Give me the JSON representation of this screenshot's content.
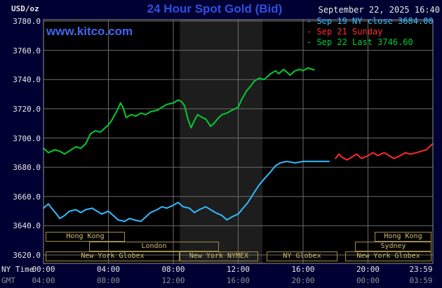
{
  "header": {
    "unit": "USD/oz",
    "title": "24 Hour Spot Gold (Bid)",
    "datetime": "September 22, 2025 16:40",
    "watermark": "www.kitco.com"
  },
  "legend": {
    "items": [
      {
        "id": "sep19",
        "marker": "-",
        "label": "Sep 19 NY close 3684.00",
        "color": "#33bbff"
      },
      {
        "id": "sep21",
        "marker": "-",
        "label": "Sep 21 Sunday",
        "color": "#ff2a2a"
      },
      {
        "id": "sep22",
        "marker": "-",
        "label": "Sep 22 Last 3746.60",
        "color": "#00cc33"
      }
    ]
  },
  "axes": {
    "x_ny_label": "NY Time",
    "x_gmt_label": "GMT"
  },
  "colors": {
    "background": "#000033",
    "plot_background": "#000000",
    "band": "#1d1d1d",
    "grid": "#6b6b6b",
    "border": "#909090",
    "title_blue": "#2f4fe0",
    "link_blue": "#3f66f2",
    "text_white": "#e8e8e8",
    "text_gray": "#909090",
    "session_border": "#a18c4a",
    "session_text": "#d4be72"
  },
  "sessions": [
    {
      "label": "Hong Kong",
      "row": 0,
      "start_hour": 0.12,
      "end_hour": 5.0
    },
    {
      "label": "Hong Kong",
      "row": 0,
      "start_hour": 20.4,
      "end_hour": 23.9
    },
    {
      "label": "London",
      "row": 1,
      "start_hour": 2.8,
      "end_hour": 10.8
    },
    {
      "label": "Sydney",
      "row": 1,
      "start_hour": 19.2,
      "end_hour": 23.9
    },
    {
      "label": "New York Globex",
      "row": 2,
      "start_hour": 0.12,
      "end_hour": 8.4
    },
    {
      "label": "New York NYMEX",
      "row": 2,
      "start_hour": 8.4,
      "end_hour": 13.25
    },
    {
      "label": "NY Globex",
      "row": 2,
      "start_hour": 13.75,
      "end_hour": 18.1
    },
    {
      "label": "New York Globex",
      "row": 2,
      "start_hour": 18.6,
      "end_hour": 23.9
    }
  ],
  "chart_data": {
    "type": "line",
    "title": "24 Hour Spot Gold (Bid)",
    "x_unit": "hour of day, NY time",
    "y_unit": "USD/oz",
    "ylim": [
      3620,
      3780
    ],
    "xlim_hours": [
      0,
      24
    ],
    "grid": true,
    "legend_position": "top-right",
    "yticks": [
      {
        "value": 3780,
        "label": "3780.0"
      },
      {
        "value": 3760,
        "label": "3760.0"
      },
      {
        "value": 3740,
        "label": "3740.0"
      },
      {
        "value": 3720,
        "label": "3720.0"
      },
      {
        "value": 3700,
        "label": "3700.0"
      },
      {
        "value": 3680,
        "label": "3680.0"
      },
      {
        "value": 3660,
        "label": "3660.0"
      },
      {
        "value": 3640,
        "label": "3640.0"
      },
      {
        "value": 3620,
        "label": "3620.0"
      }
    ],
    "xticks": [
      {
        "hour": 0,
        "ny": "00:00",
        "gmt": "04:00"
      },
      {
        "hour": 4,
        "ny": "04:00",
        "gmt": "08:00"
      },
      {
        "hour": 8,
        "ny": "08:00",
        "gmt": "12:00"
      },
      {
        "hour": 12,
        "ny": "12:00",
        "gmt": "16:00"
      },
      {
        "hour": 16,
        "ny": "16:00",
        "gmt": "20:00"
      },
      {
        "hour": 20,
        "ny": "20:00",
        "gmt": "00:00"
      },
      {
        "hour": 23.983,
        "ny": "23:59",
        "gmt": "03:59"
      }
    ],
    "band": {
      "name": "NYMEX floor session shading",
      "start_hour": 8.4,
      "end_hour": 13.5
    },
    "series": [
      {
        "id": "sep19",
        "name": "Sep 19 NY close",
        "close_value": 3684.0,
        "color": "#33bbff",
        "points": [
          [
            0,
            3652
          ],
          [
            0.3,
            3655
          ],
          [
            0.5,
            3652
          ],
          [
            0.8,
            3648
          ],
          [
            1,
            3645
          ],
          [
            1.3,
            3647
          ],
          [
            1.6,
            3650
          ],
          [
            2,
            3651
          ],
          [
            2.3,
            3649
          ],
          [
            2.6,
            3651
          ],
          [
            3,
            3652
          ],
          [
            3.3,
            3650
          ],
          [
            3.6,
            3648
          ],
          [
            4,
            3650
          ],
          [
            4.3,
            3647
          ],
          [
            4.6,
            3644
          ],
          [
            5,
            3643
          ],
          [
            5.3,
            3645
          ],
          [
            5.6,
            3644
          ],
          [
            6,
            3643
          ],
          [
            6.3,
            3646
          ],
          [
            6.6,
            3649
          ],
          [
            7,
            3651
          ],
          [
            7.3,
            3653
          ],
          [
            7.6,
            3652
          ],
          [
            8,
            3654
          ],
          [
            8.3,
            3656
          ],
          [
            8.6,
            3653
          ],
          [
            9,
            3652
          ],
          [
            9.3,
            3649
          ],
          [
            9.6,
            3651
          ],
          [
            10,
            3653
          ],
          [
            10.3,
            3651
          ],
          [
            10.6,
            3649
          ],
          [
            11,
            3647
          ],
          [
            11.3,
            3644
          ],
          [
            11.6,
            3646
          ],
          [
            12,
            3648
          ],
          [
            12.3,
            3652
          ],
          [
            12.6,
            3656
          ],
          [
            13,
            3663
          ],
          [
            13.3,
            3668
          ],
          [
            13.6,
            3672
          ],
          [
            14,
            3677
          ],
          [
            14.3,
            3681
          ],
          [
            14.6,
            3683
          ],
          [
            15,
            3684
          ],
          [
            15.5,
            3683
          ],
          [
            16,
            3684
          ],
          [
            16.5,
            3684
          ],
          [
            17,
            3684
          ],
          [
            17.6,
            3684
          ]
        ]
      },
      {
        "id": "sep21",
        "name": "Sep 21 Sunday",
        "color": "#ff2a2a",
        "points": [
          [
            18,
            3686
          ],
          [
            18.2,
            3689
          ],
          [
            18.4,
            3687
          ],
          [
            18.7,
            3685
          ],
          [
            19,
            3687
          ],
          [
            19.3,
            3689
          ],
          [
            19.6,
            3686
          ],
          [
            20,
            3688
          ],
          [
            20.3,
            3690
          ],
          [
            20.6,
            3688
          ],
          [
            21,
            3690
          ],
          [
            21.3,
            3688
          ],
          [
            21.6,
            3686
          ],
          [
            22,
            3688
          ],
          [
            22.3,
            3690
          ],
          [
            22.6,
            3689
          ],
          [
            23,
            3690
          ],
          [
            23.3,
            3691
          ],
          [
            23.6,
            3692
          ],
          [
            23.98,
            3696
          ]
        ]
      },
      {
        "id": "sep22",
        "name": "Sep 22 Last",
        "last_value": 3746.6,
        "color": "#00cc33",
        "points": [
          [
            0,
            3693
          ],
          [
            0.3,
            3690
          ],
          [
            0.7,
            3692
          ],
          [
            1,
            3691
          ],
          [
            1.3,
            3689
          ],
          [
            1.7,
            3692
          ],
          [
            2,
            3694
          ],
          [
            2.3,
            3693
          ],
          [
            2.6,
            3696
          ],
          [
            2.9,
            3703
          ],
          [
            3.2,
            3705
          ],
          [
            3.5,
            3704
          ],
          [
            3.8,
            3707
          ],
          [
            4,
            3709
          ],
          [
            4.2,
            3712
          ],
          [
            4.5,
            3718
          ],
          [
            4.75,
            3724
          ],
          [
            4.9,
            3721
          ],
          [
            5.1,
            3714
          ],
          [
            5.4,
            3716
          ],
          [
            5.7,
            3715
          ],
          [
            6,
            3717
          ],
          [
            6.3,
            3716
          ],
          [
            6.6,
            3718
          ],
          [
            7,
            3719
          ],
          [
            7.3,
            3721
          ],
          [
            7.6,
            3723
          ],
          [
            8,
            3724
          ],
          [
            8.3,
            3726
          ],
          [
            8.5,
            3725
          ],
          [
            8.7,
            3722
          ],
          [
            8.9,
            3713
          ],
          [
            9.1,
            3707
          ],
          [
            9.3,
            3712
          ],
          [
            9.5,
            3716
          ],
          [
            9.8,
            3714
          ],
          [
            10,
            3713
          ],
          [
            10.3,
            3708
          ],
          [
            10.5,
            3710
          ],
          [
            10.8,
            3714
          ],
          [
            11,
            3716
          ],
          [
            11.3,
            3717
          ],
          [
            11.6,
            3719
          ],
          [
            12,
            3721
          ],
          [
            12.2,
            3726
          ],
          [
            12.5,
            3732
          ],
          [
            12.8,
            3736
          ],
          [
            13,
            3739
          ],
          [
            13.3,
            3741
          ],
          [
            13.6,
            3740
          ],
          [
            14,
            3744
          ],
          [
            14.3,
            3746
          ],
          [
            14.5,
            3744
          ],
          [
            14.8,
            3747
          ],
          [
            15,
            3745
          ],
          [
            15.2,
            3743
          ],
          [
            15.5,
            3746
          ],
          [
            15.8,
            3747
          ],
          [
            16,
            3746
          ],
          [
            16.3,
            3748
          ],
          [
            16.67,
            3746.6
          ]
        ]
      }
    ]
  }
}
